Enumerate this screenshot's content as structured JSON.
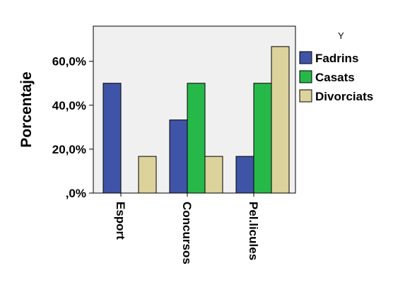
{
  "chart_data": {
    "type": "bar",
    "categories": [
      "Esport",
      "Concursos",
      "Pel.licules"
    ],
    "series": [
      {
        "name": "Fadrins",
        "color": "#3f54a6",
        "values": [
          50.0,
          33.3,
          16.7
        ]
      },
      {
        "name": "Casats",
        "color": "#27b84a",
        "values": [
          0.0,
          50.0,
          50.0
        ]
      },
      {
        "name": "Divorciats",
        "color": "#dcd29c",
        "values": [
          16.7,
          16.7,
          66.7
        ]
      }
    ],
    "ylabel": "Porcentaje",
    "xlabel": "",
    "ylim": [
      0,
      76
    ],
    "y_ticks": [
      0,
      20,
      40,
      60
    ],
    "y_tick_labels": [
      ",0%",
      "20,0%",
      "40,0%",
      "60,0%"
    ],
    "legend_title": "Y",
    "legend_position": "right",
    "plot_background": "#f0f0f0",
    "grid": false
  }
}
